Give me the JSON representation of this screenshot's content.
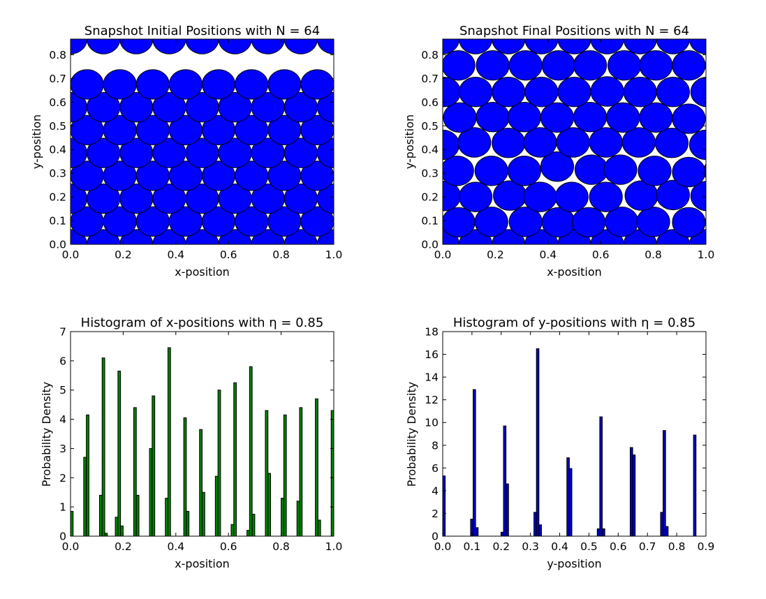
{
  "colors": {
    "disk_fill": "#0000ff",
    "disk_edge": "#000000",
    "hist_x_fill": "#008000",
    "hist_y_fill": "#0000bf",
    "bar_edge": "#000000"
  },
  "chart_data": [
    {
      "type": "scatter",
      "marker": "disk",
      "title": "Snapshot Initial Positions with N = 64",
      "xlabel": "x-position",
      "ylabel": "y-position",
      "xlim": [
        0,
        1.0
      ],
      "ylim": [
        0,
        0.866
      ],
      "xticks": [
        "0.0",
        "0.2",
        "0.4",
        "0.6",
        "0.8",
        "1.0"
      ],
      "yticks": [
        "0.0",
        "0.1",
        "0.2",
        "0.3",
        "0.4",
        "0.5",
        "0.6",
        "0.7",
        "0.8"
      ],
      "disk_radius": 0.0625,
      "lattice": {
        "rows": 8,
        "cols": 8,
        "x_spacing": 0.125,
        "y_spacing": 0.0964,
        "x_offset_even_rows": 0.0625,
        "x_offset_odd_rows": 0.0,
        "y_start": 0.0
      },
      "periodic": true,
      "grid": false
    },
    {
      "type": "scatter",
      "marker": "disk",
      "title": "Snapshot Final Positions with N = 64",
      "xlabel": "x-position",
      "ylabel": "y-position",
      "xlim": [
        0,
        1.0
      ],
      "ylim": [
        0,
        0.866
      ],
      "xticks": [
        "0.0",
        "0.2",
        "0.4",
        "0.6",
        "0.8",
        "1.0"
      ],
      "yticks": [
        "0.0",
        "0.1",
        "0.2",
        "0.3",
        "0.4",
        "0.5",
        "0.6",
        "0.7",
        "0.8"
      ],
      "disk_radius": 0.0625,
      "points": [
        [
          0.0,
          0.0
        ],
        [
          0.125,
          0.0
        ],
        [
          0.25,
          0.0
        ],
        [
          0.375,
          0.0
        ],
        [
          0.5,
          0.0
        ],
        [
          0.625,
          0.0
        ],
        [
          0.75,
          0.0
        ],
        [
          0.875,
          0.0
        ],
        [
          0.06,
          0.093
        ],
        [
          0.185,
          0.095
        ],
        [
          0.315,
          0.095
        ],
        [
          0.44,
          0.093
        ],
        [
          0.555,
          0.093
        ],
        [
          0.68,
          0.095
        ],
        [
          0.8,
          0.095
        ],
        [
          0.935,
          0.093
        ],
        [
          0.005,
          0.204
        ],
        [
          0.125,
          0.2
        ],
        [
          0.255,
          0.206
        ],
        [
          0.37,
          0.2
        ],
        [
          0.49,
          0.2
        ],
        [
          0.62,
          0.2
        ],
        [
          0.755,
          0.206
        ],
        [
          0.875,
          0.208
        ],
        [
          0.055,
          0.31
        ],
        [
          0.185,
          0.31
        ],
        [
          0.31,
          0.31
        ],
        [
          0.435,
          0.328
        ],
        [
          0.565,
          0.315
        ],
        [
          0.675,
          0.315
        ],
        [
          0.805,
          0.31
        ],
        [
          0.935,
          0.305
        ],
        [
          0.0,
          0.42
        ],
        [
          0.12,
          0.43
        ],
        [
          0.25,
          0.428
        ],
        [
          0.37,
          0.43
        ],
        [
          0.495,
          0.43
        ],
        [
          0.62,
          0.43
        ],
        [
          0.745,
          0.43
        ],
        [
          0.87,
          0.428
        ],
        [
          0.065,
          0.535
        ],
        [
          0.19,
          0.537
        ],
        [
          0.31,
          0.537
        ],
        [
          0.435,
          0.535
        ],
        [
          0.56,
          0.537
        ],
        [
          0.685,
          0.535
        ],
        [
          0.81,
          0.535
        ],
        [
          0.935,
          0.53
        ],
        [
          0.005,
          0.643
        ],
        [
          0.125,
          0.643
        ],
        [
          0.25,
          0.643
        ],
        [
          0.375,
          0.643
        ],
        [
          0.5,
          0.643
        ],
        [
          0.625,
          0.645
        ],
        [
          0.75,
          0.643
        ],
        [
          0.875,
          0.643
        ],
        [
          0.06,
          0.755
        ],
        [
          0.19,
          0.755
        ],
        [
          0.315,
          0.755
        ],
        [
          0.44,
          0.755
        ],
        [
          0.56,
          0.755
        ],
        [
          0.69,
          0.755
        ],
        [
          0.81,
          0.755
        ],
        [
          0.935,
          0.755
        ]
      ],
      "periodic": true,
      "grid": false
    },
    {
      "type": "bar",
      "title": "Histogram of x-positions with η = 0.85",
      "xlabel": "x-position",
      "ylabel": "Probability Density",
      "xlim": [
        0,
        1.0
      ],
      "ylim": [
        0,
        7
      ],
      "xticks": [
        "0.0",
        "0.2",
        "0.4",
        "0.6",
        "0.8",
        "1.0"
      ],
      "yticks": [
        "0",
        "1",
        "2",
        "3",
        "4",
        "5",
        "6",
        "7"
      ],
      "bin_width": 0.01,
      "bins": [
        {
          "x": 0.0,
          "value": 0.85
        },
        {
          "x": 0.05,
          "value": 2.7
        },
        {
          "x": 0.06,
          "value": 4.15
        },
        {
          "x": 0.11,
          "value": 1.4
        },
        {
          "x": 0.12,
          "value": 6.1
        },
        {
          "x": 0.13,
          "value": 0.1
        },
        {
          "x": 0.17,
          "value": 0.65
        },
        {
          "x": 0.18,
          "value": 5.65
        },
        {
          "x": 0.19,
          "value": 0.35
        },
        {
          "x": 0.24,
          "value": 4.4
        },
        {
          "x": 0.25,
          "value": 1.4
        },
        {
          "x": 0.3,
          "value": 3.0
        },
        {
          "x": 0.31,
          "value": 4.8
        },
        {
          "x": 0.36,
          "value": 1.3
        },
        {
          "x": 0.37,
          "value": 6.45
        },
        {
          "x": 0.43,
          "value": 4.05
        },
        {
          "x": 0.44,
          "value": 0.85
        },
        {
          "x": 0.49,
          "value": 3.65
        },
        {
          "x": 0.5,
          "value": 1.5
        },
        {
          "x": 0.55,
          "value": 2.05
        },
        {
          "x": 0.56,
          "value": 5.0
        },
        {
          "x": 0.61,
          "value": 0.4
        },
        {
          "x": 0.62,
          "value": 5.25
        },
        {
          "x": 0.67,
          "value": 0.2
        },
        {
          "x": 0.68,
          "value": 5.8
        },
        {
          "x": 0.69,
          "value": 0.75
        },
        {
          "x": 0.74,
          "value": 4.3
        },
        {
          "x": 0.75,
          "value": 2.15
        },
        {
          "x": 0.8,
          "value": 1.3
        },
        {
          "x": 0.81,
          "value": 4.15
        },
        {
          "x": 0.86,
          "value": 1.2
        },
        {
          "x": 0.87,
          "value": 4.4
        },
        {
          "x": 0.93,
          "value": 4.7
        },
        {
          "x": 0.94,
          "value": 0.55
        },
        {
          "x": 0.99,
          "value": 4.3
        }
      ],
      "grid": false
    },
    {
      "type": "bar",
      "title": "Histogram of y-positions with η = 0.85",
      "xlabel": "y-position",
      "ylabel": "Probability Density",
      "xlim": [
        0,
        0.9
      ],
      "ylim": [
        0,
        18
      ],
      "xticks": [
        "0.0",
        "0.1",
        "0.2",
        "0.3",
        "0.4",
        "0.5",
        "0.6",
        "0.7",
        "0.8",
        "0.9"
      ],
      "yticks": [
        "0",
        "2",
        "4",
        "6",
        "8",
        "10",
        "12",
        "14",
        "16",
        "18"
      ],
      "bin_width": 0.00866,
      "bins": [
        {
          "x": 0.0,
          "value": 5.3
        },
        {
          "x": 0.0953,
          "value": 1.5
        },
        {
          "x": 0.1039,
          "value": 12.9
        },
        {
          "x": 0.1126,
          "value": 0.75
        },
        {
          "x": 0.1992,
          "value": 0.35
        },
        {
          "x": 0.2078,
          "value": 9.7
        },
        {
          "x": 0.2165,
          "value": 4.6
        },
        {
          "x": 0.3118,
          "value": 2.1
        },
        {
          "x": 0.3204,
          "value": 16.5
        },
        {
          "x": 0.3291,
          "value": 1.0
        },
        {
          "x": 0.4244,
          "value": 6.9
        },
        {
          "x": 0.433,
          "value": 5.95
        },
        {
          "x": 0.5283,
          "value": 0.65
        },
        {
          "x": 0.5369,
          "value": 10.5
        },
        {
          "x": 0.5456,
          "value": 0.65
        },
        {
          "x": 0.6409,
          "value": 7.8
        },
        {
          "x": 0.6495,
          "value": 7.15
        },
        {
          "x": 0.7448,
          "value": 2.1
        },
        {
          "x": 0.7534,
          "value": 9.3
        },
        {
          "x": 0.7621,
          "value": 0.85
        },
        {
          "x": 0.8574,
          "value": 8.9
        }
      ],
      "grid": false
    }
  ]
}
